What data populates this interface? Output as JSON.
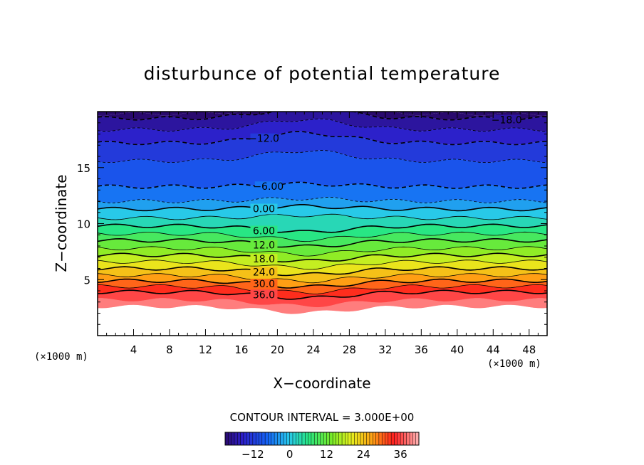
{
  "chart_data": {
    "type": "contour",
    "title": "disturbunce of potential temperature",
    "xlabel": "X−coordinate",
    "ylabel": "Z−coordinate",
    "x_unit": "(×1000 m)",
    "y_unit": "(×1000 m)",
    "xlim": [
      0,
      50
    ],
    "ylim": [
      0,
      20
    ],
    "x_ticks": [
      4,
      8,
      12,
      16,
      20,
      24,
      28,
      32,
      36,
      40,
      44,
      48
    ],
    "y_ticks": [
      5,
      10,
      15
    ],
    "contour_interval_text": "CONTOUR INTERVAL = 3.000E+00",
    "contour_labels": [
      "−18.0",
      "−12.0",
      "−6.00",
      "0.00",
      "6.00",
      "12.0",
      "18.0",
      "24.0",
      "30.0",
      "36.0"
    ],
    "colorbar": {
      "min": -21,
      "max": 42,
      "tick_values": [
        -12,
        0,
        12,
        24,
        36
      ],
      "tick_labels": [
        "−12",
        "0",
        "12",
        "24",
        "36"
      ]
    },
    "colors": {
      "cold": "#2a0a6e",
      "neutral": "#2fe0c0",
      "warm": "#ff2020",
      "hot": "#ffb0b0"
    }
  }
}
